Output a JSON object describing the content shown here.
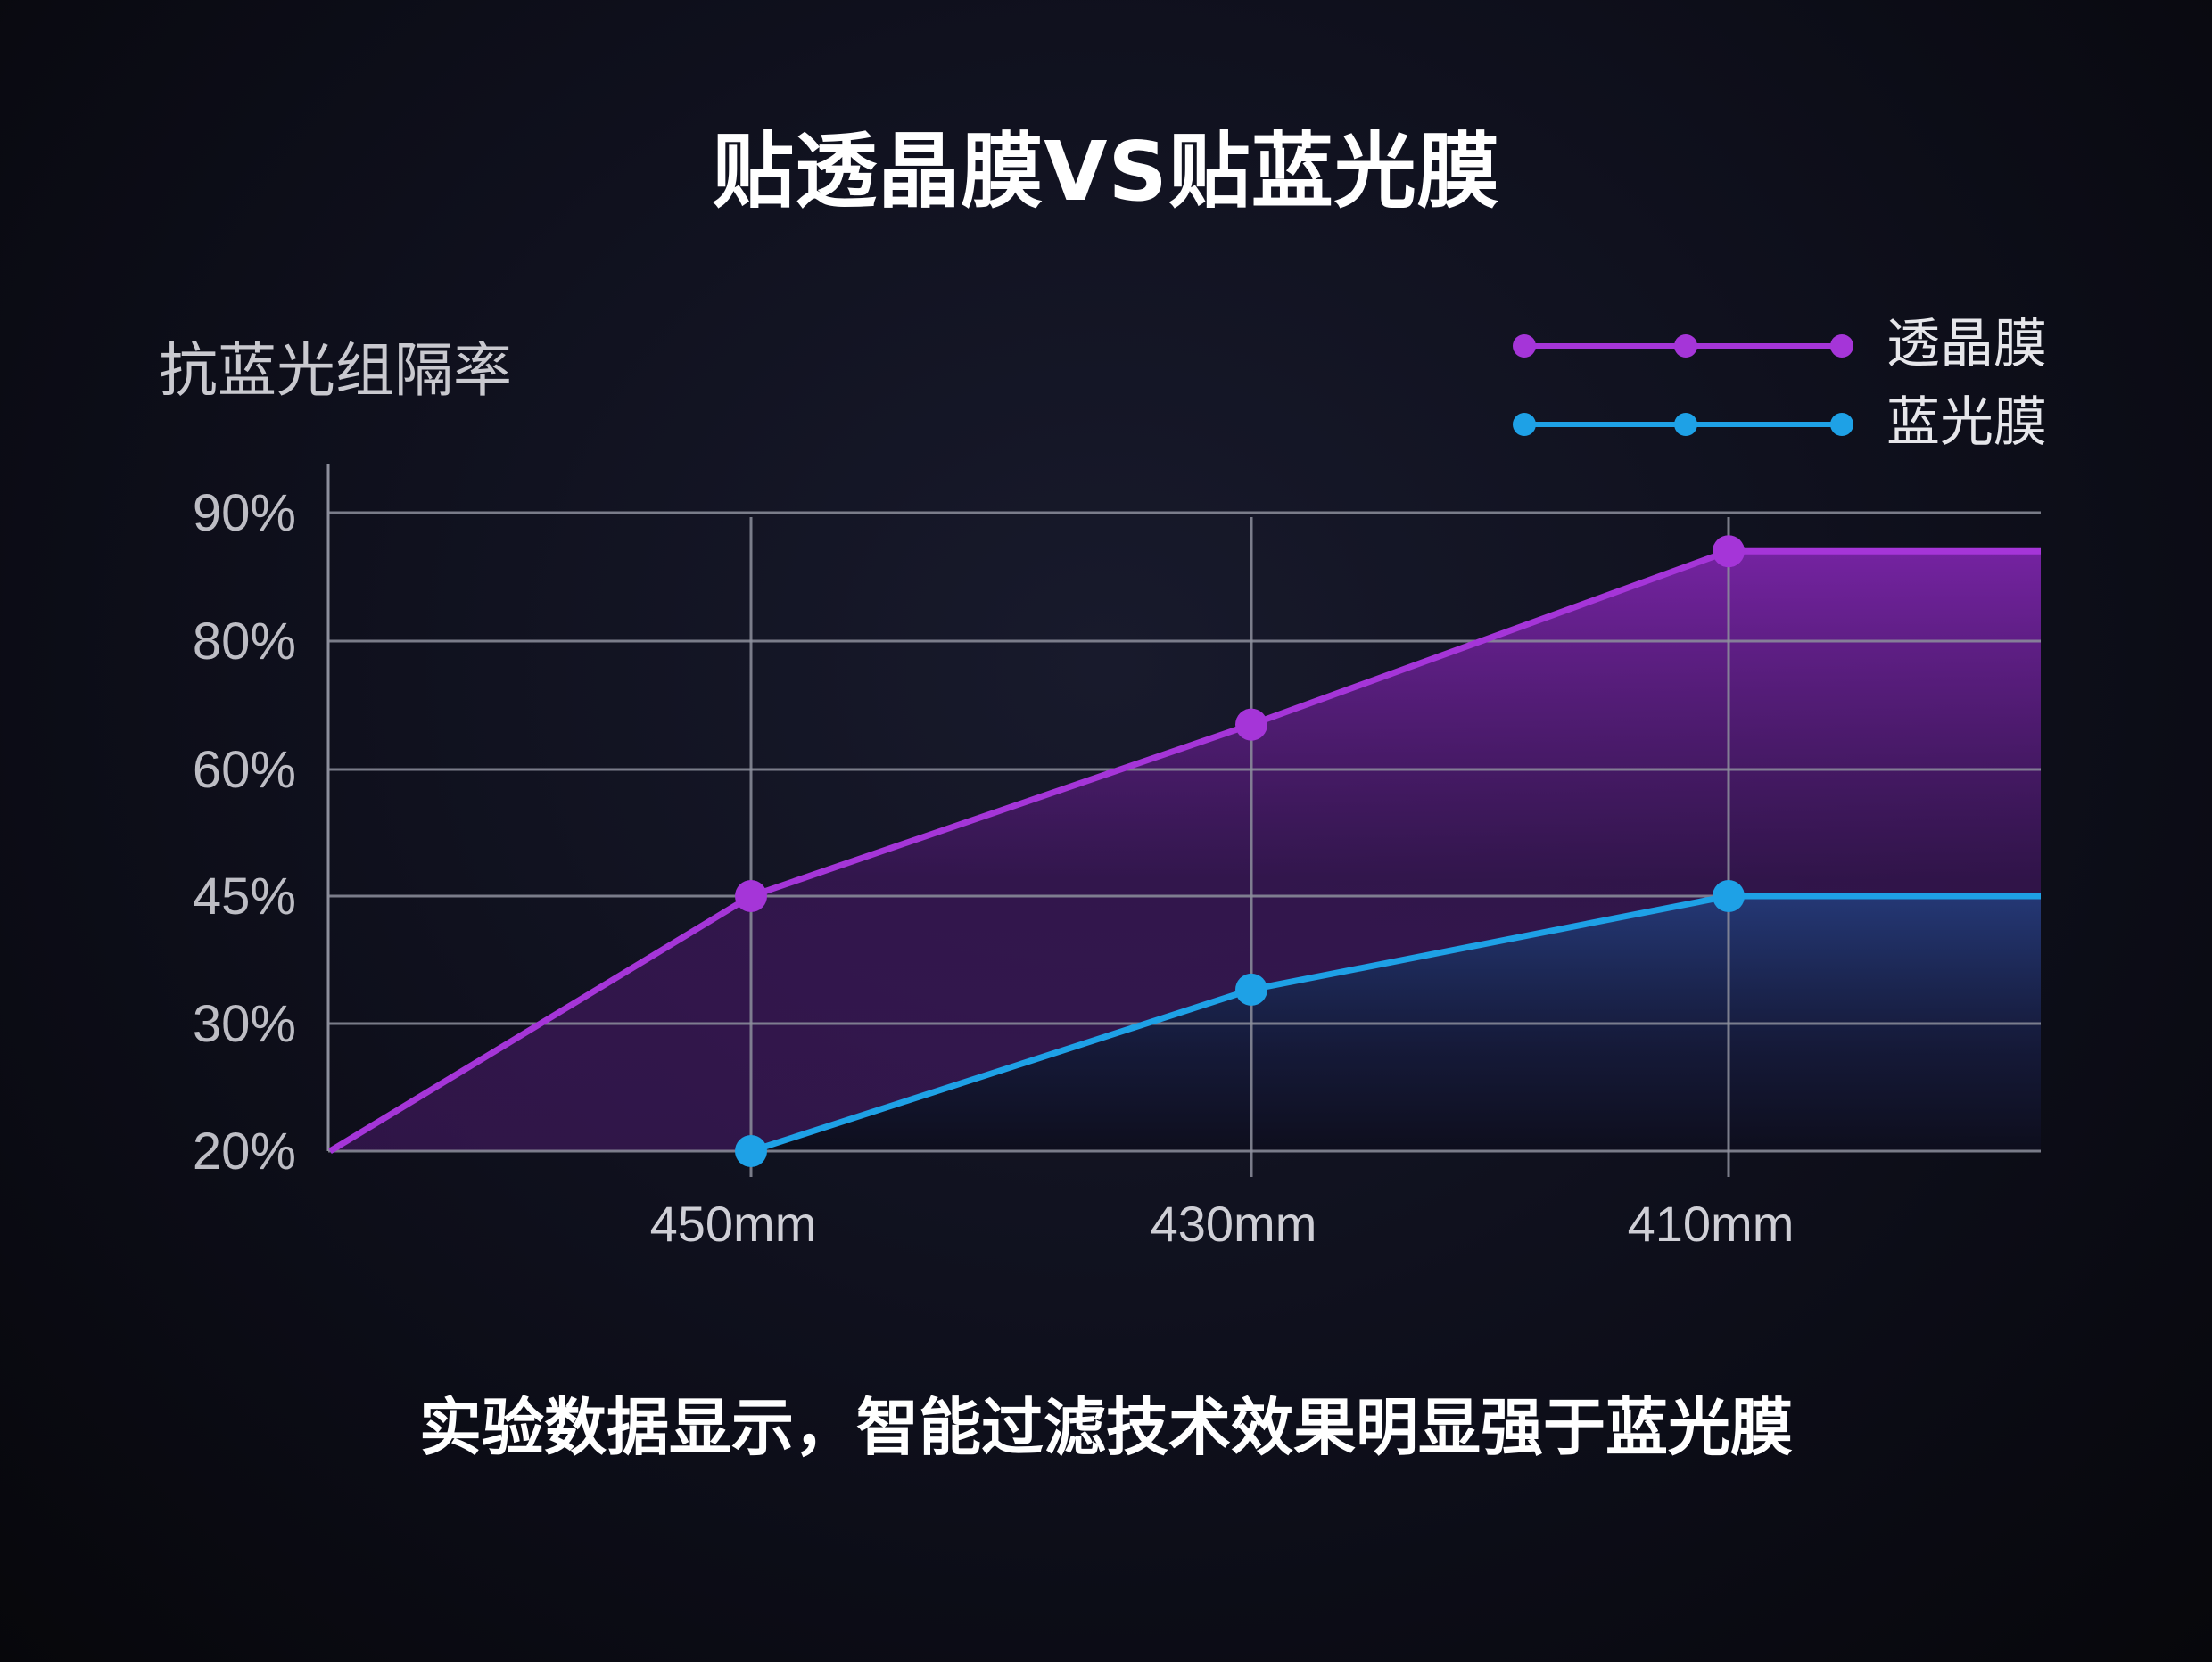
{
  "title": "贴透晶膜VS贴蓝光膜",
  "footer": "实验数据显示，智能过滤技术效果明显强于蓝光膜",
  "colors": {
    "crystal": "#a535d8",
    "blue": "#1ea1e6",
    "grid": "#8d8f9c"
  },
  "chart_data": {
    "type": "line",
    "ylabel": "抗蓝光组隔率",
    "y_ticks": [
      "90%",
      "80%",
      "60%",
      "45%",
      "30%",
      "20%"
    ],
    "y_tick_values": [
      90,
      80,
      60,
      45,
      30,
      20
    ],
    "categories": [
      "450mm",
      "430mm",
      "410mm"
    ],
    "legend_position": "top-right",
    "grid": true,
    "series": [
      {
        "name": "透晶膜",
        "color": "#a535d8",
        "values": [
          45,
          67,
          87
        ]
      },
      {
        "name": "蓝光膜",
        "color": "#1ea1e6",
        "values": [
          20,
          34,
          45
        ]
      }
    ]
  }
}
